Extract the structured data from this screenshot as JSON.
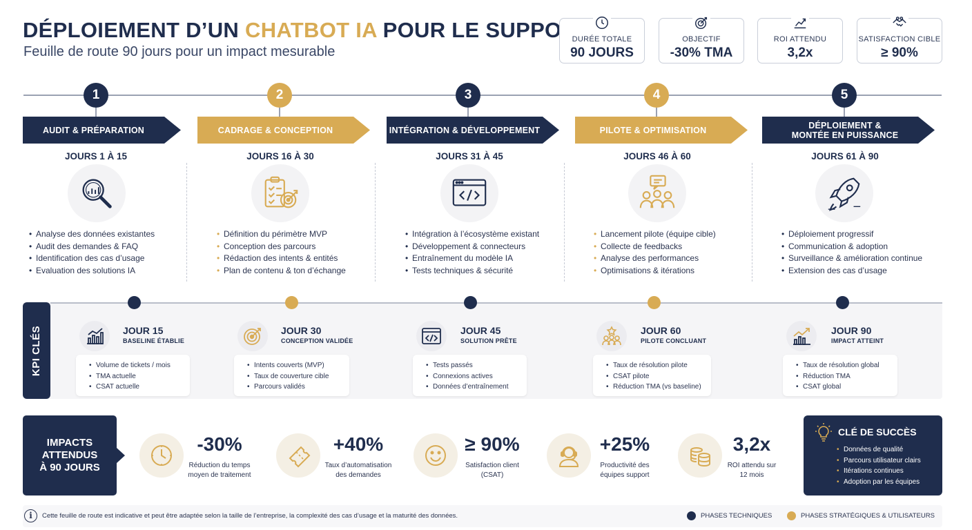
{
  "header": {
    "title_part1": "DÉPLOIEMENT D’UN ",
    "title_accent": "CHATBOT IA",
    "title_part2": " POUR LE SUPPORT",
    "subtitle": "Feuille de route 90 jours pour un impact mesurable"
  },
  "stats": [
    {
      "icon": "clock-icon",
      "label": "DURÉE TOTALE",
      "value": "90 JOURS"
    },
    {
      "icon": "target-icon",
      "label": "OBJECTIF",
      "value": "-30% TMA"
    },
    {
      "icon": "growth-chart-icon",
      "label": "ROI ATTENDU",
      "value": "3,2x"
    },
    {
      "icon": "handshake-icon",
      "label": "SATISFACTION CIBLE",
      "value": "≥ 90%"
    }
  ],
  "phases": [
    {
      "number": "1",
      "title": "AUDIT & PRÉPARATION",
      "days": "JOURS 1 À 15",
      "color": "navy",
      "icon": "magnifier-chart-icon",
      "items": [
        "Analyse des données existantes",
        "Audit des demandes & FAQ",
        "Identification des cas d’usage",
        "Evaluation des solutions IA"
      ]
    },
    {
      "number": "2",
      "title": "CADRAGE & CONCEPTION",
      "days": "JOURS 16 À 30",
      "color": "gold",
      "icon": "checklist-target-icon",
      "items": [
        "Définition du périmètre MVP",
        "Conception des parcours",
        "Rédaction des intents & entités",
        "Plan de contenu & ton d’échange"
      ]
    },
    {
      "number": "3",
      "title": "INTÉGRATION & DÉVELOPPEMENT",
      "days": "JOURS 31 À 45",
      "color": "navy",
      "icon": "code-window-icon",
      "items": [
        "Intégration à l’écosystème existant",
        "Développement & connecteurs",
        "Entraînement du modèle IA",
        "Tests techniques & sécurité"
      ]
    },
    {
      "number": "4",
      "title": "PILOTE & OPTIMISATION",
      "days": "JOURS 46 À 60",
      "color": "gold",
      "icon": "team-chat-icon",
      "items": [
        "Lancement pilote (équipe cible)",
        "Collecte de feedbacks",
        "Analyse des performances",
        "Optimisations & itérations"
      ]
    },
    {
      "number": "5",
      "title": "DÉPLOIEMENT & MONTÉE EN PUISSANCE",
      "days": "JOURS 61 À 90",
      "color": "navy",
      "icon": "rocket-icon",
      "items": [
        "Déploiement progressif",
        "Communication & adoption",
        "Surveillance & amélioration continue",
        "Extension des cas d’usage"
      ]
    }
  ],
  "kpi": {
    "side_label": "KPI CLÉS",
    "milestones": [
      {
        "title": "JOUR 15",
        "subtitle": "BASELINE ÉTABLIE",
        "color": "navy",
        "icon": "bar-chart-icon",
        "items": [
          "Volume de tickets / mois",
          "TMA actuelle",
          "CSAT actuelle"
        ]
      },
      {
        "title": "JOUR 30",
        "subtitle": "CONCEPTION VALIDÉE",
        "color": "gold",
        "icon": "target-icon",
        "items": [
          "Intents couverts (MVP)",
          "Taux de couverture cible",
          "Parcours validés"
        ]
      },
      {
        "title": "JOUR 45",
        "subtitle": "SOLUTION PRÊTE",
        "color": "navy",
        "icon": "code-window-icon",
        "items": [
          "Tests passés",
          "Connexions actives",
          "Données d’entraînement"
        ]
      },
      {
        "title": "JOUR 60",
        "subtitle": "PILOTE CONCLUANT",
        "color": "gold",
        "icon": "team-star-icon",
        "items": [
          "Taux de résolution pilote",
          "CSAT pilote",
          "Réduction TMA (vs baseline)"
        ]
      },
      {
        "title": "JOUR 90",
        "subtitle": "IMPACT ATTEINT",
        "color": "navy",
        "icon": "trend-chart-icon",
        "items": [
          "Taux de résolution global",
          "Réduction TMA",
          "CSAT global"
        ]
      }
    ]
  },
  "impacts": {
    "label": "IMPACTS\nATTENDUS\nÀ 90 JOURS",
    "items": [
      {
        "value": "-30%",
        "label": "Réduction du temps\nmoyen de traitement",
        "icon": "clock-icon"
      },
      {
        "value": "+40%",
        "label": "Taux d’automatisation\ndes demandes",
        "icon": "ticket-icon"
      },
      {
        "value": "≥ 90%",
        "label": "Satisfaction client\n(CSAT)",
        "icon": "smiley-icon"
      },
      {
        "value": "+25%",
        "label": "Productivité des\néquipes support",
        "icon": "support-agent-icon"
      },
      {
        "value": "3,2x",
        "label": "ROI attendu sur\n12 mois",
        "icon": "coins-icon"
      }
    ]
  },
  "success": {
    "title": "CLÉ DE SUCCÈS",
    "items": [
      "Données de qualité",
      "Parcours utilisateur clairs",
      "Itérations continues",
      "Adoption par les équipes"
    ]
  },
  "footer": {
    "info": "i",
    "note": "Cette feuille de route est indicative et peut être adaptée selon la taille de l’entreprise, la complexité des cas d’usage et la maturité des données.",
    "legend": [
      {
        "label": "PHASES TECHNIQUES",
        "color": "#1f2d4d"
      },
      {
        "label": "PHASES STRATÉGIQUES & UTILISATEURS",
        "color": "#d8ab54"
      }
    ]
  },
  "colors": {
    "navy": "#1f2d4d",
    "gold": "#d8ab54",
    "background": "#ffffff"
  }
}
